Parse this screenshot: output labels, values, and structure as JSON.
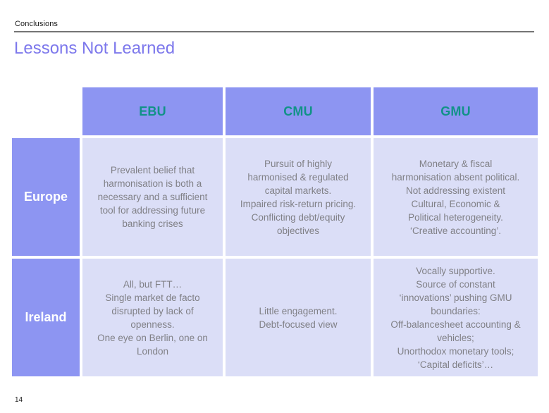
{
  "slide": {
    "eyebrow": "Conclusions",
    "title": "Lessons Not Learned",
    "page_number": "14"
  },
  "colors": {
    "header_purple": "#8d95f2",
    "body_cell_lavender": "#dbdef7",
    "column_header_teal": "#119287",
    "title_violet": "#7d78ec",
    "body_text_gray": "#808086",
    "rule_gray": "#757575"
  },
  "table": {
    "column_headers": [
      "EBU",
      "CMU",
      "GMU"
    ],
    "rows": [
      {
        "header": "Europe",
        "cells": [
          "Prevalent belief that\nharmonisation is both a\nnecessary and a sufficient\ntool for addressing future\nbanking crises",
          "Pursuit of highly\nharmonised & regulated\ncapital markets.\nImpaired risk-return pricing.\nConflicting debt/equity\nobjectives",
          "Monetary & fiscal\nharmonisation absent political.\nNot addressing existent\nCultural, Economic &\nPolitical heterogeneity.\n‘Creative accounting’."
        ]
      },
      {
        "header": "Ireland",
        "cells": [
          "All, but FTT…\nSingle market de facto\ndisrupted by lack of\nopenness.\nOne eye on Berlin, one on\nLondon",
          "Little engagement.\nDebt-focused view",
          "Vocally supportive.\nSource of constant\n‘innovations’ pushing GMU\nboundaries:\nOff-balancesheet accounting &\nvehicles;\nUnorthodox monetary tools;\n‘Capital deficits’…"
        ]
      }
    ]
  }
}
